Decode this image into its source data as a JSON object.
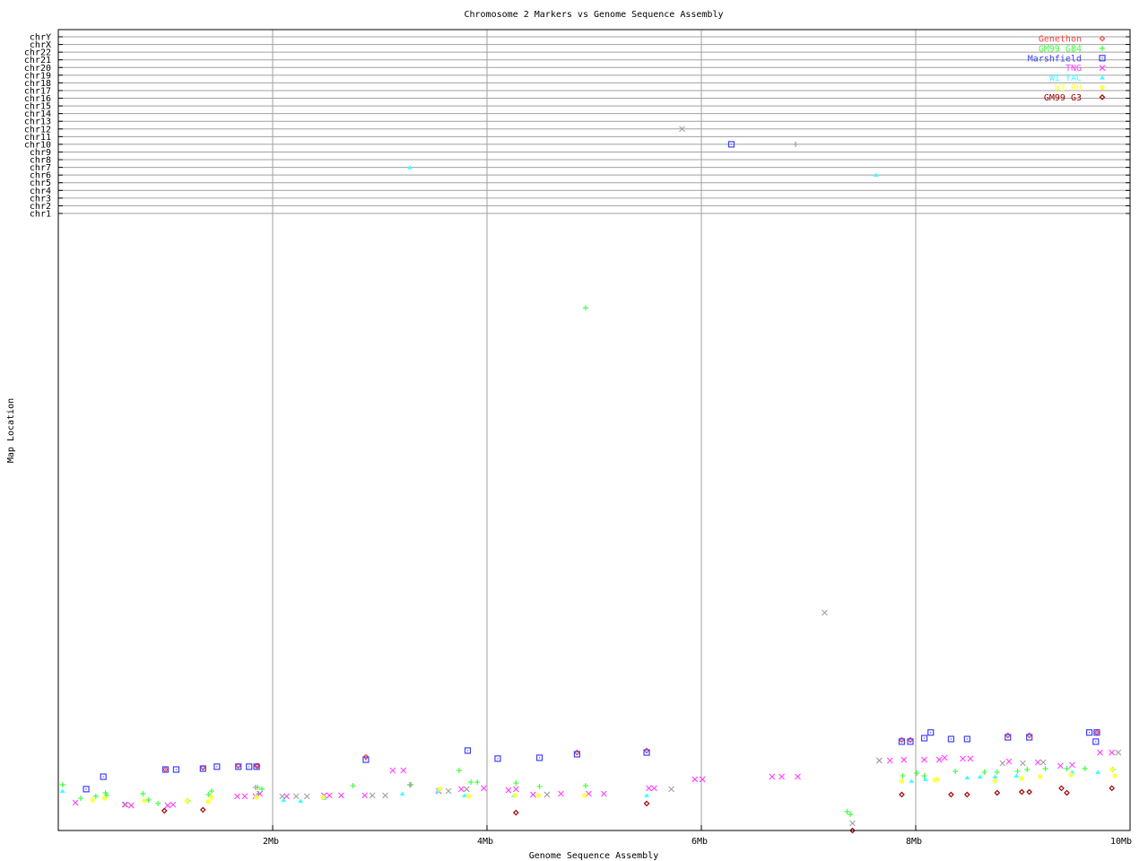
{
  "chart_data": {
    "type": "scatter",
    "title": "Chromosome 2 Markers vs Genome Sequence Assembly",
    "xlabel": "Genome Sequence Assembly",
    "ylabel": "Map Location",
    "xlim": [
      0,
      10
    ],
    "x_unit": "Mb",
    "x_ticks": [
      "2Mb",
      "4Mb",
      "6Mb",
      "8Mb",
      "10Mb"
    ],
    "x_tick_values": [
      2,
      4,
      6,
      8,
      10
    ],
    "y_categories": [
      "chrY",
      "chrX",
      "chr22",
      "chr21",
      "chr20",
      "chr19",
      "chr18",
      "chr17",
      "chr16",
      "chr15",
      "chr14",
      "chr13",
      "chr12",
      "chr11",
      "chr10",
      "chr9",
      "chr8",
      "chr7",
      "chr6",
      "chr5",
      "chr4",
      "chr3",
      "chr2",
      "chr1"
    ],
    "grid": true,
    "legend_position": "top-right",
    "series": [
      {
        "name": "Genethon",
        "color": "#ff4040",
        "marker": "diamond",
        "points": [
          [
            1.0,
            28
          ],
          [
            1.35,
            28.8
          ],
          [
            1.68,
            29.7
          ],
          [
            1.85,
            29.7
          ],
          [
            1.86,
            29.7
          ],
          [
            2.87,
            33.8
          ],
          [
            4.84,
            35.8
          ],
          [
            5.49,
            36.7
          ],
          [
            7.87,
            41.6
          ],
          [
            7.95,
            41.6
          ],
          [
            8.86,
            43.7
          ],
          [
            9.06,
            43.7
          ],
          [
            9.69,
            45
          ]
        ]
      },
      {
        "name": "GM99 GB4",
        "color": "#40ff40",
        "marker": "plus",
        "points": [
          [
            0.04,
            21
          ],
          [
            0.21,
            14.8
          ],
          [
            0.35,
            15.7
          ],
          [
            0.44,
            17.3
          ],
          [
            0.45,
            16.1
          ],
          [
            0.79,
            16.9
          ],
          [
            0.84,
            14
          ],
          [
            0.93,
            12.4
          ],
          [
            1.21,
            13.6
          ],
          [
            1.4,
            16.5
          ],
          [
            1.43,
            18.1
          ],
          [
            1.86,
            19.8
          ],
          [
            1.87,
            16.9
          ],
          [
            1.9,
            19
          ],
          [
            2.75,
            20.6
          ],
          [
            3.29,
            21
          ],
          [
            3.74,
            27.6
          ],
          [
            3.85,
            22.2
          ],
          [
            3.91,
            22.2
          ],
          [
            4.27,
            21.8
          ],
          [
            4.49,
            20.2
          ],
          [
            4.92,
            240
          ],
          [
            4.92,
            20.6
          ],
          [
            7.36,
            8.7
          ],
          [
            7.39,
            7.4
          ],
          [
            7.88,
            25.1
          ],
          [
            8.01,
            26.4
          ],
          [
            8.08,
            25.1
          ],
          [
            8.37,
            27.2
          ],
          [
            8.64,
            26.8
          ],
          [
            8.76,
            26.8
          ],
          [
            8.95,
            27.2
          ],
          [
            9.04,
            28
          ],
          [
            9.21,
            28.4
          ],
          [
            9.41,
            28.4
          ],
          [
            9.58,
            28.4
          ],
          [
            9.84,
            28
          ]
        ]
      },
      {
        "name": "Marshfield",
        "color": "#4040ff",
        "marker": "square",
        "points": [
          [
            0.26,
            19
          ],
          [
            0.42,
            24.7
          ],
          [
            1.0,
            28
          ],
          [
            1.1,
            28
          ],
          [
            1.35,
            28.4
          ],
          [
            1.48,
            29.3
          ],
          [
            1.68,
            29.3
          ],
          [
            1.78,
            29.3
          ],
          [
            1.85,
            29.3
          ],
          [
            2.87,
            32.5
          ],
          [
            3.82,
            36.7
          ],
          [
            4.1,
            33
          ],
          [
            4.49,
            33.4
          ],
          [
            4.84,
            35
          ],
          [
            5.49,
            35.8
          ],
          [
            6.28,
            "chr10"
          ],
          [
            7.87,
            40.8
          ],
          [
            7.95,
            40.8
          ],
          [
            8.08,
            42.4
          ],
          [
            8.14,
            45
          ],
          [
            8.33,
            42
          ],
          [
            8.48,
            42
          ],
          [
            8.86,
            42.8
          ],
          [
            9.06,
            42.8
          ],
          [
            9.62,
            45
          ],
          [
            9.69,
            45
          ],
          [
            9.68,
            40.8
          ]
        ]
      },
      {
        "name": "TNG",
        "color": "#ff40ff",
        "marker": "x",
        "points": [
          [
            0.16,
            12.8
          ],
          [
            0.62,
            11.9
          ],
          [
            0.68,
            11.5
          ],
          [
            1.02,
            11.5
          ],
          [
            1.07,
            11.9
          ],
          [
            1.67,
            15.7
          ],
          [
            1.74,
            15.7
          ],
          [
            1.84,
            15.7
          ],
          [
            1.88,
            16.9
          ],
          [
            2.13,
            15.7
          ],
          [
            2.48,
            16.1
          ],
          [
            2.53,
            16.1
          ],
          [
            2.64,
            16.1
          ],
          [
            2.86,
            16.1
          ],
          [
            3.12,
            27.6
          ],
          [
            3.22,
            27.6
          ],
          [
            3.55,
            18.1
          ],
          [
            3.76,
            19
          ],
          [
            3.81,
            19
          ],
          [
            3.97,
            19.4
          ],
          [
            4.2,
            18.5
          ],
          [
            4.27,
            19
          ],
          [
            4.43,
            16.5
          ],
          [
            4.69,
            16.9
          ],
          [
            4.95,
            16.9
          ],
          [
            5.09,
            16.9
          ],
          [
            5.51,
            19.4
          ],
          [
            5.56,
            19.4
          ],
          [
            5.94,
            23.5
          ],
          [
            6.01,
            23.5
          ],
          [
            6.66,
            24.7
          ],
          [
            6.75,
            24.7
          ],
          [
            6.9,
            24.7
          ],
          [
            7.66,
            32.1
          ],
          [
            7.76,
            32.1
          ],
          [
            7.89,
            32.5
          ],
          [
            8.08,
            32.5
          ],
          [
            8.22,
            32.5
          ],
          [
            8.27,
            33.4
          ],
          [
            8.44,
            33
          ],
          [
            8.51,
            33
          ],
          [
            8.87,
            31.7
          ],
          [
            9.14,
            31.3
          ],
          [
            9.35,
            29.7
          ],
          [
            9.46,
            30.1
          ],
          [
            9.72,
            35.8
          ],
          [
            9.83,
            35.8
          ]
        ]
      },
      {
        "name": "WI YAC",
        "color": "#40ffff",
        "marker": "triangle",
        "points": [
          [
            0.04,
            18.1
          ],
          [
            2.1,
            14
          ],
          [
            2.26,
            13.6
          ],
          [
            2.48,
            14.8
          ],
          [
            3.21,
            16.9
          ],
          [
            3.28,
            "chr7"
          ],
          [
            3.54,
            18.1
          ],
          [
            3.79,
            16.1
          ],
          [
            4.25,
            16.1
          ],
          [
            5.49,
            16.1
          ],
          [
            7.63,
            "chr6"
          ],
          [
            7.96,
            22.7
          ],
          [
            8.09,
            23.5
          ],
          [
            8.48,
            24.3
          ],
          [
            8.6,
            24.7
          ],
          [
            8.74,
            24.7
          ],
          [
            8.94,
            25.1
          ],
          [
            9.46,
            26.8
          ],
          [
            9.7,
            26.8
          ]
        ]
      },
      {
        "name": "WI RH",
        "color": "#ffff40",
        "marker": "asterisk",
        "points": [
          [
            0.32,
            14
          ],
          [
            0.43,
            14.8
          ],
          [
            0.8,
            13.6
          ],
          [
            1.2,
            13.6
          ],
          [
            1.4,
            13.2
          ],
          [
            1.43,
            15.2
          ],
          [
            1.85,
            15.2
          ],
          [
            2.47,
            15.2
          ],
          [
            3.56,
            19
          ],
          [
            3.83,
            15.7
          ],
          [
            4.26,
            16.1
          ],
          [
            4.48,
            16.1
          ],
          [
            4.91,
            16.1
          ],
          [
            7.87,
            22.7
          ],
          [
            8.18,
            23.1
          ],
          [
            8.2,
            23.5
          ],
          [
            8.74,
            22.7
          ],
          [
            8.99,
            23.9
          ],
          [
            9.16,
            24.7
          ],
          [
            9.45,
            25.5
          ],
          [
            9.83,
            28
          ],
          [
            9.86,
            25.1
          ]
        ]
      },
      {
        "name": "GM99 G3",
        "color": "#a00000",
        "marker": "diamond",
        "points": [
          [
            0.99,
            9.1
          ],
          [
            1.35,
            9.5
          ],
          [
            4.27,
            8.2
          ],
          [
            5.49,
            12.4
          ],
          [
            7.41,
            0
          ],
          [
            7.87,
            16.5
          ],
          [
            8.33,
            16.5
          ],
          [
            8.48,
            16.5
          ],
          [
            8.76,
            17.3
          ],
          [
            8.99,
            17.7
          ],
          [
            9.06,
            17.7
          ],
          [
            9.36,
            19.4
          ],
          [
            9.41,
            17.3
          ],
          [
            9.83,
            19.4
          ]
        ]
      },
      {
        "color": "#a0a0a0",
        "marker": "x",
        "points": [
          [
            5.82,
            "chr12"
          ],
          [
            7.15,
            100
          ],
          [
            7.41,
            3.3
          ],
          [
            0.63,
            11.9
          ],
          [
            2.09,
            15.7
          ],
          [
            2.22,
            15.7
          ],
          [
            2.32,
            15.7
          ],
          [
            2.93,
            16.1
          ],
          [
            3.05,
            16.1
          ],
          [
            3.64,
            18.1
          ],
          [
            3.81,
            19
          ],
          [
            4.56,
            16.5
          ],
          [
            5.72,
            19
          ],
          [
            7.66,
            32.1
          ],
          [
            8.81,
            30.9
          ],
          [
            9.0,
            30.9
          ],
          [
            9.19,
            31.3
          ],
          [
            9.89,
            35.8
          ]
        ]
      },
      {
        "color": "#a0a0a0",
        "marker": "plus",
        "points": [
          [
            6.88,
            "chr10"
          ],
          [
            1.84,
            19.8
          ],
          [
            3.28,
            21
          ]
        ]
      }
    ]
  }
}
